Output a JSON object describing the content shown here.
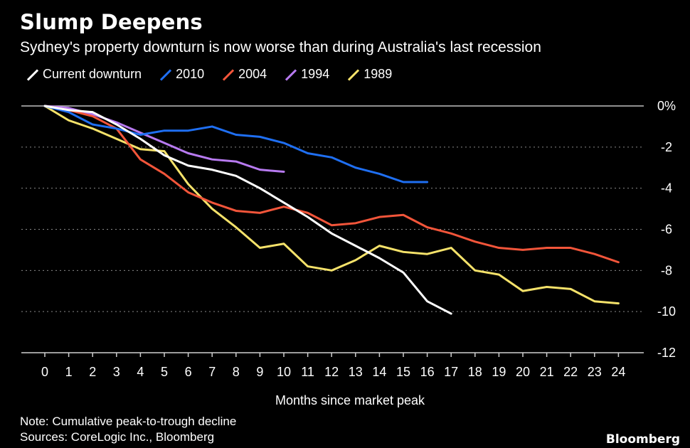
{
  "title": "Slump Deepens",
  "subtitle": "Sydney's property downturn is now worse than during Australia's last recession",
  "note": "Note: Cumulative peak-to-trough decline",
  "sources": "Sources: CoreLogic Inc., Bloomberg",
  "brand": "Bloomberg",
  "chart_data": {
    "type": "line",
    "xlabel": "Months since market peak",
    "ylabel": "",
    "xlim": [
      0,
      24
    ],
    "ylim": [
      -12,
      0
    ],
    "x_ticks": [
      0,
      1,
      2,
      3,
      4,
      5,
      6,
      7,
      8,
      9,
      10,
      11,
      12,
      13,
      14,
      15,
      16,
      17,
      18,
      19,
      20,
      21,
      22,
      23,
      24
    ],
    "y_ticks": [
      0,
      -2,
      -4,
      -6,
      -8,
      -10,
      -12
    ],
    "y_tick_labels": [
      "0%",
      "-2",
      "-4",
      "-6",
      "-8",
      "-10",
      "-12"
    ],
    "grid": "horizontal dotted",
    "legend_position": "top-left",
    "series": [
      {
        "name": "Current downturn",
        "color": "#ffffff",
        "values": [
          0,
          -0.2,
          -0.3,
          -0.9,
          -1.6,
          -2.4,
          -2.9,
          -3.1,
          -3.4,
          -4.0,
          -4.7,
          -5.4,
          -6.2,
          -6.8,
          -7.4,
          -8.1,
          -9.5,
          -10.1
        ]
      },
      {
        "name": "2010",
        "color": "#1f6ff2",
        "values": [
          0,
          -0.3,
          -0.9,
          -1.1,
          -1.4,
          -1.2,
          -1.2,
          -1.0,
          -1.4,
          -1.5,
          -1.8,
          -2.3,
          -2.5,
          -3.0,
          -3.3,
          -3.7,
          -3.7
        ]
      },
      {
        "name": "2004",
        "color": "#f2553a",
        "values": [
          0,
          -0.2,
          -0.5,
          -1.1,
          -2.6,
          -3.3,
          -4.2,
          -4.7,
          -5.1,
          -5.2,
          -4.9,
          -5.2,
          -5.8,
          -5.7,
          -5.4,
          -5.3,
          -5.9,
          -6.2,
          -6.6,
          -6.9,
          -7.0,
          -6.9,
          -6.9,
          -7.2,
          -7.6
        ]
      },
      {
        "name": "1994",
        "color": "#b77af0",
        "values": [
          0,
          -0.1,
          -0.4,
          -0.8,
          -1.3,
          -1.8,
          -2.3,
          -2.6,
          -2.7,
          -3.1,
          -3.2
        ]
      },
      {
        "name": "1989",
        "color": "#f5e26a",
        "values": [
          0,
          -0.7,
          -1.1,
          -1.6,
          -2.1,
          -2.2,
          -3.8,
          -5.0,
          -5.9,
          -6.9,
          -6.7,
          -7.8,
          -8.0,
          -7.5,
          -6.8,
          -7.1,
          -7.2,
          -6.9,
          -8.0,
          -8.2,
          -9.0,
          -8.8,
          -8.9,
          -9.5,
          -9.6
        ]
      }
    ]
  }
}
